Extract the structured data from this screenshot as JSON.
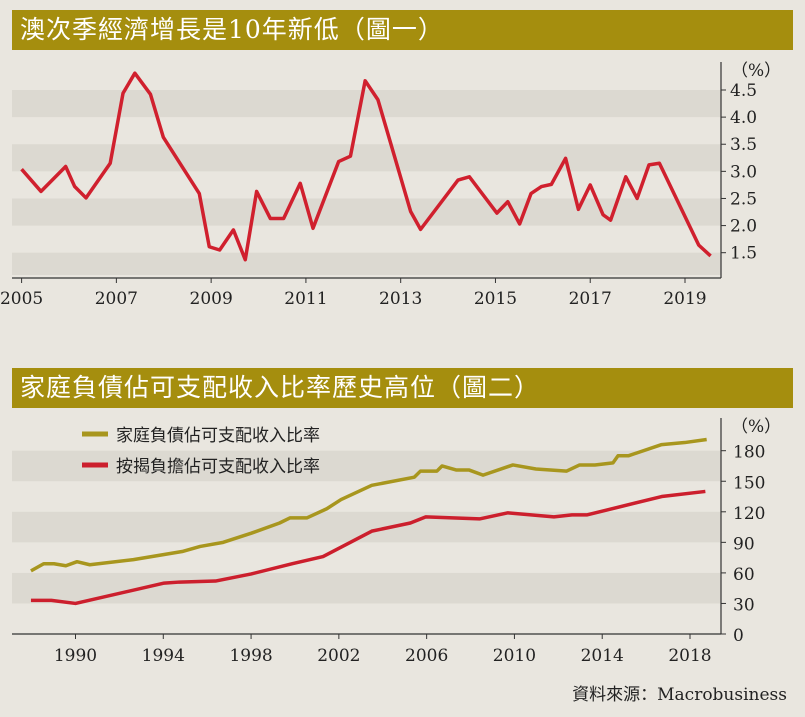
{
  "chart_data": [
    {
      "type": "line",
      "title": "澳次季經濟增長是10年新低（圖一）",
      "unit_label": "（%）",
      "xlim": [
        2005,
        2019.75
      ],
      "ylim": [
        1.2,
        4.9
      ],
      "x_ticks": [
        2005,
        2007,
        2009,
        2011,
        2013,
        2015,
        2017,
        2019
      ],
      "y_ticks": [
        1.5,
        2.0,
        2.5,
        3.0,
        3.5,
        4.0,
        4.5
      ],
      "y_tick_labels": [
        "1.5",
        "2.0",
        "2.5",
        "3.0",
        "3.5",
        "4.0",
        "4.5"
      ],
      "grid": "alternating horizontal bands",
      "colors": {
        "line": "#d0202e",
        "band": "#dcd9d1"
      },
      "series": [
        {
          "x": [
            2005.0,
            2005.41,
            2005.93,
            2006.12,
            2006.36,
            2006.87,
            2007.14,
            2007.39,
            2007.72,
            2007.99,
            2008.75,
            2008.96,
            2009.18,
            2009.47,
            2009.72,
            2009.96,
            2010.25,
            2010.53,
            2010.88,
            2011.15,
            2011.69,
            2011.94,
            2012.25,
            2012.52,
            2013.21,
            2013.42,
            2014.21,
            2014.45,
            2015.03,
            2015.26,
            2015.51,
            2015.75,
            2015.97,
            2016.18,
            2016.48,
            2016.75,
            2017.0,
            2017.27,
            2017.43,
            2017.75,
            2017.99,
            2018.24,
            2018.46,
            2019.29,
            2019.54
          ],
          "y": [
            3.04,
            2.63,
            3.09,
            2.72,
            2.51,
            3.15,
            4.44,
            4.81,
            4.42,
            3.63,
            2.59,
            1.61,
            1.55,
            1.92,
            1.37,
            2.63,
            2.13,
            2.13,
            2.78,
            1.95,
            3.18,
            3.28,
            4.67,
            4.32,
            2.26,
            1.93,
            2.84,
            2.9,
            2.23,
            2.44,
            2.03,
            2.59,
            2.72,
            2.76,
            3.24,
            2.3,
            2.75,
            2.2,
            2.1,
            2.9,
            2.5,
            3.12,
            3.15,
            1.64,
            1.44
          ]
        }
      ]
    },
    {
      "type": "line",
      "title": "家庭負債佔可支配收入比率歷史高位（圖二）",
      "unit_label": "（%）",
      "xlim": [
        1985.2,
        2019.6
      ],
      "ylim": [
        0,
        200
      ],
      "x_ticks": [
        1990,
        1994,
        1998,
        2002,
        2006,
        2010,
        2014,
        2018
      ],
      "y_ticks": [
        0,
        30,
        60,
        90,
        120,
        150,
        180
      ],
      "grid": "alternating horizontal bands",
      "legend": "top-left",
      "series": [
        {
          "name": "家庭負債佔可支配收入比率",
          "color": "#a8961e",
          "x": [
            1987.97,
            1988.55,
            1989.02,
            1989.56,
            1990.07,
            1990.65,
            1992.64,
            1994.86,
            1995.68,
            1996.73,
            1998.01,
            1999.3,
            1999.77,
            2000.54,
            2001.45,
            2002.1,
            2003.5,
            2005.44,
            2005.72,
            2006.47,
            2006.7,
            2007.36,
            2007.94,
            2008.57,
            2009.93,
            2010.98,
            2012.38,
            2012.97,
            2013.67,
            2014.49,
            2014.72,
            2015.19,
            2016.71,
            2017.76,
            2018.76
          ],
          "y": [
            62,
            69,
            69,
            67,
            71,
            68,
            73,
            81,
            86,
            90,
            99,
            109,
            114,
            114,
            123,
            132,
            146,
            154,
            160,
            160,
            165,
            161,
            161,
            156,
            166,
            162,
            160,
            166,
            166,
            168,
            175,
            175,
            186,
            188,
            191
          ]
        },
        {
          "name": "按揭負擔佔可支配收入比率",
          "color": "#cc1f2d",
          "x": [
            1987.97,
            1988.9,
            1990.0,
            1994.04,
            1994.74,
            1996.38,
            1998.01,
            1999.88,
            2001.28,
            2003.5,
            2005.26,
            2005.96,
            2008.41,
            2009.7,
            2011.8,
            2012.62,
            2013.32,
            2016.71,
            2018.7
          ],
          "y": [
            33,
            33,
            30,
            50,
            51,
            52,
            59,
            69,
            76,
            101,
            109,
            115,
            113,
            119,
            115,
            117,
            117,
            135,
            140
          ]
        }
      ]
    }
  ],
  "source": "資料來源：Macrobusiness"
}
